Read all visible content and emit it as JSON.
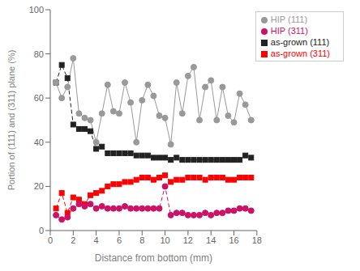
{
  "chart_data": {
    "type": "line",
    "xlabel": "Distance from bottom (mm)",
    "ylabel": "Portion of (111) and (311) plane (%)",
    "x": [
      0.5,
      1.0,
      1.5,
      2.0,
      2.5,
      3.0,
      3.5,
      4.0,
      4.5,
      5.0,
      5.5,
      6.0,
      6.5,
      7.0,
      7.5,
      8.0,
      8.5,
      9.0,
      9.5,
      10.0,
      10.5,
      11.0,
      11.5,
      12.0,
      12.5,
      13.0,
      13.5,
      14.0,
      14.5,
      15.0,
      15.5,
      16.0,
      16.5,
      17.0,
      17.5
    ],
    "series": [
      {
        "name": "as-grown (311)",
        "color": "#ff0000",
        "marker": "square",
        "line_style": "dashed",
        "values": [
          10,
          17,
          8,
          15,
          14,
          12,
          16,
          17,
          18,
          20,
          21,
          21,
          22,
          22,
          23,
          24,
          24,
          23,
          24,
          25,
          22,
          23,
          23,
          24,
          24,
          24,
          23,
          24,
          24,
          24,
          23,
          23,
          24,
          24,
          24
        ]
      },
      {
        "name": "as-grown (111)",
        "color": "#222222",
        "marker": "square",
        "line_style": "dashed",
        "values": [
          67,
          75,
          69,
          48,
          46,
          46,
          45,
          37,
          38,
          35,
          35,
          35,
          35,
          35,
          34,
          34,
          34,
          33,
          33,
          33,
          32,
          33,
          32,
          32,
          32,
          32,
          32,
          32,
          32,
          32,
          32,
          32,
          32,
          34,
          33
        ]
      },
      {
        "name": "HIP (311)",
        "color": "#cc1166",
        "marker": "circle",
        "line_style": "dashed",
        "values": [
          7,
          5,
          6,
          10,
          12,
          11,
          12,
          10,
          11,
          10,
          10,
          10,
          11,
          10,
          10,
          10,
          10,
          10,
          10,
          20,
          7,
          8,
          8,
          7,
          7,
          7,
          8,
          7,
          8,
          8,
          9,
          9,
          10,
          10,
          9
        ]
      },
      {
        "name": "HIP (111)",
        "color": "#999999",
        "marker": "circle",
        "line_style": "solid",
        "values": [
          67,
          60,
          65,
          78,
          53,
          51,
          50,
          40,
          53,
          66,
          54,
          53,
          67,
          58,
          40,
          59,
          66,
          61,
          52,
          51,
          39,
          67,
          53,
          70,
          74,
          50,
          65,
          68,
          50,
          65,
          52,
          49,
          62,
          57,
          50
        ]
      }
    ],
    "xlim": [
      0,
      18
    ],
    "ylim": [
      0,
      100
    ],
    "xticks": [
      0,
      2,
      4,
      6,
      8,
      10,
      12,
      14,
      16,
      18
    ],
    "yticks": [
      0,
      20,
      40,
      60,
      80,
      100
    ],
    "legend": "upper right",
    "grid": false
  }
}
